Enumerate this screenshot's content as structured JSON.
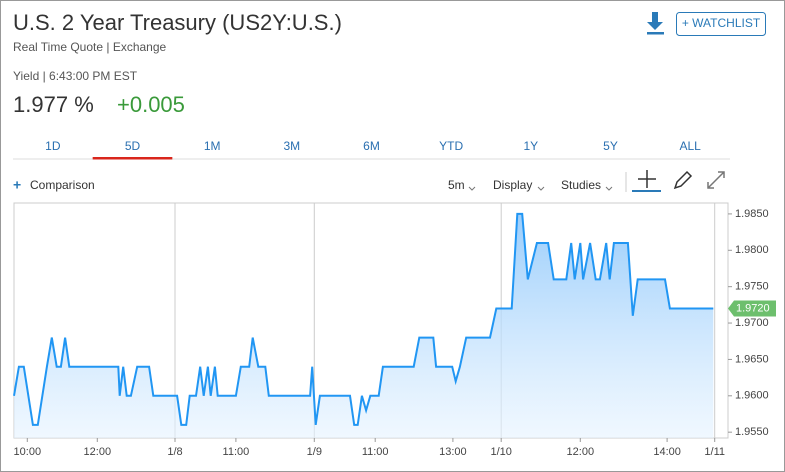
{
  "header": {
    "title": "U.S. 2 Year Treasury (US2Y:U.S.)",
    "subtitle": "Real Time Quote | Exchange",
    "watchlist": "+ WATCHLIST"
  },
  "quote": {
    "label": "Yield | 6:43:00 PM EST",
    "value": "1.977",
    "unit": "%",
    "change": "+0.005"
  },
  "tabs": [
    "1D",
    "5D",
    "1M",
    "3M",
    "6M",
    "YTD",
    "1Y",
    "5Y",
    "ALL"
  ],
  "toolbar": {
    "comparison": "Comparison",
    "interval": "5m",
    "display": "Display",
    "studies": "Studies"
  },
  "chart_data": {
    "type": "area",
    "color": "#2196f3",
    "x": [
      0,
      0.7,
      1.4,
      2.7,
      3.4,
      4.7,
      5.4,
      6.1,
      6.7,
      7.3,
      7.9,
      14.9,
      15.1,
      15.6,
      16.1,
      16.7,
      17.6,
      19.3,
      19.9,
      23.3,
      23.9,
      24.6,
      25.1,
      26,
      26.6,
      27.1,
      27.7,
      28.1,
      28.7,
      29.1,
      31.7,
      32.4,
      33.6,
      34.1,
      34.9,
      35.9,
      36.4,
      42.3,
      42.6,
      43.1,
      43.7,
      48,
      48.6,
      49.1,
      49.7,
      50.3,
      50.9,
      52.1,
      52.7,
      57.1,
      57.9,
      59.9,
      60.3,
      62.6,
      63.1,
      63.7,
      64.6,
      68,
      68.9,
      71.1,
      71.9,
      72.6,
      73.4,
      74.7,
      76.3,
      77.1,
      78.9,
      79.6,
      80.1,
      80.9,
      81.3,
      82.3,
      83.1,
      83.7,
      84.6,
      85.1,
      85.7,
      87.7,
      88.4,
      89.1,
      93,
      93.7,
      99.9
    ],
    "values": [
      1.96,
      1.964,
      1.964,
      1.956,
      1.956,
      1.964,
      1.968,
      1.964,
      1.964,
      1.968,
      1.964,
      1.964,
      1.96,
      1.964,
      1.96,
      1.96,
      1.964,
      1.964,
      1.96,
      1.96,
      1.956,
      1.956,
      1.96,
      1.96,
      1.964,
      1.96,
      1.964,
      1.96,
      1.964,
      1.96,
      1.96,
      1.964,
      1.964,
      1.968,
      1.964,
      1.964,
      1.96,
      1.96,
      1.964,
      1.956,
      1.96,
      1.96,
      1.956,
      1.956,
      1.96,
      1.958,
      1.96,
      1.96,
      1.964,
      1.964,
      1.968,
      1.968,
      1.964,
      1.964,
      1.962,
      1.964,
      1.968,
      1.968,
      1.972,
      1.972,
      1.985,
      1.985,
      1.976,
      1.981,
      1.981,
      1.976,
      1.976,
      1.981,
      1.976,
      1.981,
      1.976,
      1.981,
      1.976,
      1.976,
      1.981,
      1.976,
      1.981,
      1.981,
      1.971,
      1.976,
      1.976,
      1.972,
      1.972
    ],
    "xlim": [
      0,
      102
    ],
    "xticks": [
      {
        "value": 1.9,
        "label": "10:00"
      },
      {
        "value": 11.9,
        "label": "12:00"
      },
      {
        "value": 23,
        "label": "1/8"
      },
      {
        "value": 31.7,
        "label": "11:00"
      },
      {
        "value": 42.9,
        "label": "1/9"
      },
      {
        "value": 51.6,
        "label": "11:00"
      },
      {
        "value": 62.7,
        "label": "13:00"
      },
      {
        "value": 69.6,
        "label": "1/10"
      },
      {
        "value": 80.9,
        "label": "12:00"
      },
      {
        "value": 93.3,
        "label": "14:00"
      },
      {
        "value": 100.1,
        "label": "1/11"
      }
    ],
    "ylim": [
      1.9542,
      1.9865
    ],
    "yticks": [
      {
        "value": 1.955,
        "label": "1.9550"
      },
      {
        "value": 1.96,
        "label": "1.9600"
      },
      {
        "value": 1.965,
        "label": "1.9650"
      },
      {
        "value": 1.97,
        "label": "1.9700"
      },
      {
        "value": 1.975,
        "label": "1.9750"
      },
      {
        "value": 1.98,
        "label": "1.9800"
      },
      {
        "value": 1.985,
        "label": "1.9850"
      }
    ],
    "last_label": {
      "value": 1.972,
      "label": "1.9720"
    }
  }
}
